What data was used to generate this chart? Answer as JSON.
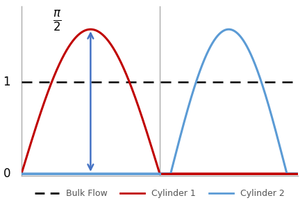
{
  "bulk_flow_value": 1.0,
  "pi_over_2": 1.5707963267948966,
  "cyl1_color": "#C00000",
  "cyl2_color": "#5B9BD5",
  "bulk_color": "#000000",
  "arrow_color": "#4472C4",
  "bg_color": "#FFFFFF",
  "label_bulk": "Bulk Flow",
  "label_cyl1": "Cylinder 1",
  "label_cyl2": "Cylinder 2",
  "figsize": [
    4.42,
    3.08
  ],
  "dpi": 100,
  "linewidth": 2.2,
  "legend_fontsize": 9.0,
  "vline_color": "#AAAAAA",
  "vline_lw": 1.0,
  "border_color": "#AAAAAA"
}
